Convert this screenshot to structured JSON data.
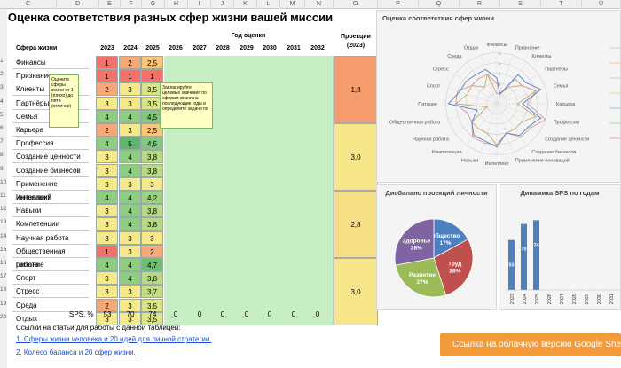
{
  "columns": [
    "C",
    "D",
    "E",
    "F",
    "G",
    "H",
    "I",
    "J",
    "K",
    "L",
    "M",
    "N",
    "O",
    "P",
    "Q",
    "R",
    "S",
    "T",
    "U"
  ],
  "rows": [
    "1",
    "2",
    "3",
    "4",
    "5",
    "6",
    "7",
    "8",
    "9",
    "10",
    "11",
    "12",
    "13",
    "14",
    "15",
    "16",
    "17",
    "18",
    "19",
    "20"
  ],
  "title": "Оценка соответствия разных сфер жизни вашей миссии",
  "year_group_label": "Год оценки",
  "sphere_label": "Сфера жизни",
  "projection_label_1": "Проекции",
  "projection_label_2": "(2023)",
  "years": [
    "2023",
    "2024",
    "2025",
    "2026",
    "2027",
    "2028",
    "2029",
    "2030",
    "2031",
    "2032"
  ],
  "spheres": [
    {
      "name": "Финансы",
      "v": [
        "1",
        "2",
        "2,5"
      ],
      "c": [
        "#f4716a",
        "#f6a877",
        "#f8c77c"
      ]
    },
    {
      "name": "Признание",
      "v": [
        "1",
        "1",
        "1"
      ],
      "c": [
        "#f4716a",
        "#f4716a",
        "#f4716a"
      ]
    },
    {
      "name": "Клиенты",
      "v": [
        "2",
        "3",
        "3,5"
      ],
      "c": [
        "#f6a877",
        "#f5e98a",
        "#d8e38a"
      ]
    },
    {
      "name": "Партнёры",
      "v": [
        "3",
        "3",
        "3,5"
      ],
      "c": [
        "#f5e98a",
        "#f5e98a",
        "#d8e38a"
      ]
    },
    {
      "name": "Семья",
      "v": [
        "4",
        "4",
        "4,5"
      ],
      "c": [
        "#8fcd80",
        "#8fcd80",
        "#83c67e"
      ]
    },
    {
      "name": "Карьера",
      "v": [
        "2",
        "3",
        "2,5"
      ],
      "c": [
        "#f6a877",
        "#f5e98a",
        "#f8c77c"
      ]
    },
    {
      "name": "Профессия",
      "v": [
        "4",
        "5",
        "4,5"
      ],
      "c": [
        "#8fcd80",
        "#5db66c",
        "#83c67e"
      ]
    },
    {
      "name": "Создание ценности",
      "v": [
        "3",
        "4",
        "3,8"
      ],
      "c": [
        "#f5e98a",
        "#8fcd80",
        "#b8da86"
      ]
    },
    {
      "name": "Создание бизнесов",
      "v": [
        "3",
        "4",
        "3,8"
      ],
      "c": [
        "#f5e98a",
        "#8fcd80",
        "#b8da86"
      ]
    },
    {
      "name": "Применение инноваций",
      "v": [
        "3",
        "3",
        "3"
      ],
      "c": [
        "#f5e98a",
        "#f5e98a",
        "#f5e98a"
      ]
    },
    {
      "name": "Интеллект",
      "v": [
        "4",
        "4",
        "4,2"
      ],
      "c": [
        "#8fcd80",
        "#8fcd80",
        "#9fd280"
      ]
    },
    {
      "name": "Навыки",
      "v": [
        "3",
        "4",
        "3,8"
      ],
      "c": [
        "#f5e98a",
        "#8fcd80",
        "#b8da86"
      ]
    },
    {
      "name": "Компетенции",
      "v": [
        "3",
        "4",
        "3,8"
      ],
      "c": [
        "#f5e98a",
        "#8fcd80",
        "#b8da86"
      ]
    },
    {
      "name": "Научная работа",
      "v": [
        "3",
        "3",
        "3"
      ],
      "c": [
        "#f5e98a",
        "#f5e98a",
        "#f5e98a"
      ]
    },
    {
      "name": "Общественная работа",
      "v": [
        "1",
        "3",
        "2"
      ],
      "c": [
        "#f4716a",
        "#f5e98a",
        "#f6a877"
      ]
    },
    {
      "name": "Питание",
      "v": [
        "4",
        "4",
        "4,7"
      ],
      "c": [
        "#8fcd80",
        "#8fcd80",
        "#6fbd73"
      ]
    },
    {
      "name": "Спорт",
      "v": [
        "3",
        "4",
        "3,8"
      ],
      "c": [
        "#f5e98a",
        "#8fcd80",
        "#b8da86"
      ]
    },
    {
      "name": "Стресс",
      "v": [
        "3",
        "3",
        "3,7"
      ],
      "c": [
        "#f5e98a",
        "#f5e98a",
        "#c2dd88"
      ]
    },
    {
      "name": "Среда",
      "v": [
        "2",
        "3",
        "3,5"
      ],
      "c": [
        "#f6a877",
        "#f5e98a",
        "#d8e38a"
      ]
    },
    {
      "name": "Отдых",
      "v": [
        "3",
        "3",
        "3,5"
      ],
      "c": [
        "#f5e98a",
        "#f5e98a",
        "#d8e38a"
      ]
    }
  ],
  "projections": [
    {
      "value": "1,8",
      "color": "#f59c6c"
    },
    {
      "value": "3,0",
      "color": "#f7e58a"
    },
    {
      "value": "2,8",
      "color": "#f6de84"
    },
    {
      "value": "3,0",
      "color": "#f7e58a"
    }
  ],
  "sps_label": "SPS, %",
  "sps": [
    "53",
    "70",
    "74",
    "0",
    "0",
    "0",
    "0",
    "0",
    "0",
    "0"
  ],
  "tip1": "Оцените сферы жизни от 1 (плохо) до пяти (отлично)",
  "tip2": "Запланируйте целевые значения по сферам жизни на последующие годы и определите задачи по",
  "links_intro": "Ссылки на статьи для работы с данной таблицей:",
  "link1": "1. Сферы жизни человека и 20 идей для личной стратегии.",
  "link2": "2. Колесо баланса и 20 сфер жизни.",
  "google_button": "Ссылка на облачную версию Google Sheets",
  "radar": {
    "title": "Оценка соответствия сфер жизни",
    "ticks": [
      "5",
      "4",
      "3",
      "2",
      "1"
    ],
    "legend_lines": [
      "#b8d0e8",
      "#f0c4a0",
      "#d0d0d0",
      "#e8d890",
      "#a0c0e0",
      "#a8d8a0",
      "#e0b0b0"
    ]
  },
  "pie": {
    "title": "Дисбаланс проекций личности",
    "slices": [
      {
        "label": "Общество",
        "pct": "17%",
        "value": 17,
        "color": "#4e80c0"
      },
      {
        "label": "Труд",
        "pct": "28%",
        "value": 28,
        "color": "#c0504d"
      },
      {
        "label": "Развитие",
        "pct": "27%",
        "value": 27,
        "color": "#9bbb59"
      },
      {
        "label": "Здоровье",
        "pct": "28%",
        "value": 28,
        "color": "#8064a2"
      }
    ]
  },
  "bar": {
    "title": "Динамика SPS по годам",
    "color": "#4e80c0",
    "max": 80
  }
}
